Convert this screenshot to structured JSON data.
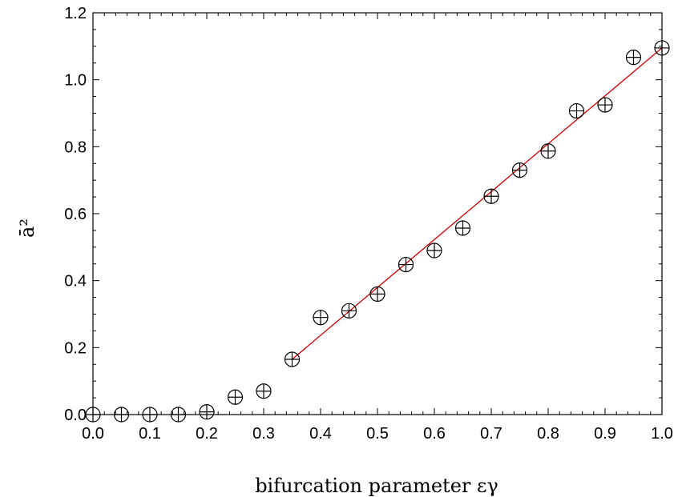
{
  "chart_data": {
    "type": "scatter",
    "title": "",
    "xlabel": "bifurcation parameter εγ",
    "ylabel": "ā²",
    "xlim": [
      0.0,
      1.0
    ],
    "ylim": [
      0.0,
      1.2
    ],
    "x_ticks": [
      "0.0",
      "0.1",
      "0.2",
      "0.3",
      "0.4",
      "0.5",
      "0.6",
      "0.7",
      "0.8",
      "0.9",
      "1.0"
    ],
    "y_ticks": [
      "0.0",
      "0.2",
      "0.4",
      "0.6",
      "0.8",
      "1.0",
      "1.2"
    ],
    "grid": false,
    "series": [
      {
        "type": "scatter",
        "marker": "circle-plus",
        "color": "#000000",
        "x": [
          0.0,
          0.05,
          0.1,
          0.15,
          0.2,
          0.25,
          0.3,
          0.35,
          0.4,
          0.45,
          0.5,
          0.55,
          0.6,
          0.65,
          0.7,
          0.75,
          0.8,
          0.85,
          0.9,
          0.95,
          1.0
        ],
        "y": [
          0.0,
          0.0,
          0.0,
          0.0,
          0.008,
          0.052,
          0.07,
          0.165,
          0.29,
          0.31,
          0.36,
          0.448,
          0.49,
          0.557,
          0.652,
          0.73,
          0.787,
          0.907,
          0.925,
          1.067,
          1.095
        ]
      },
      {
        "type": "line",
        "color": "#cc0000",
        "x": [
          0.35,
          1.0
        ],
        "y": [
          0.165,
          1.095
        ]
      }
    ]
  }
}
